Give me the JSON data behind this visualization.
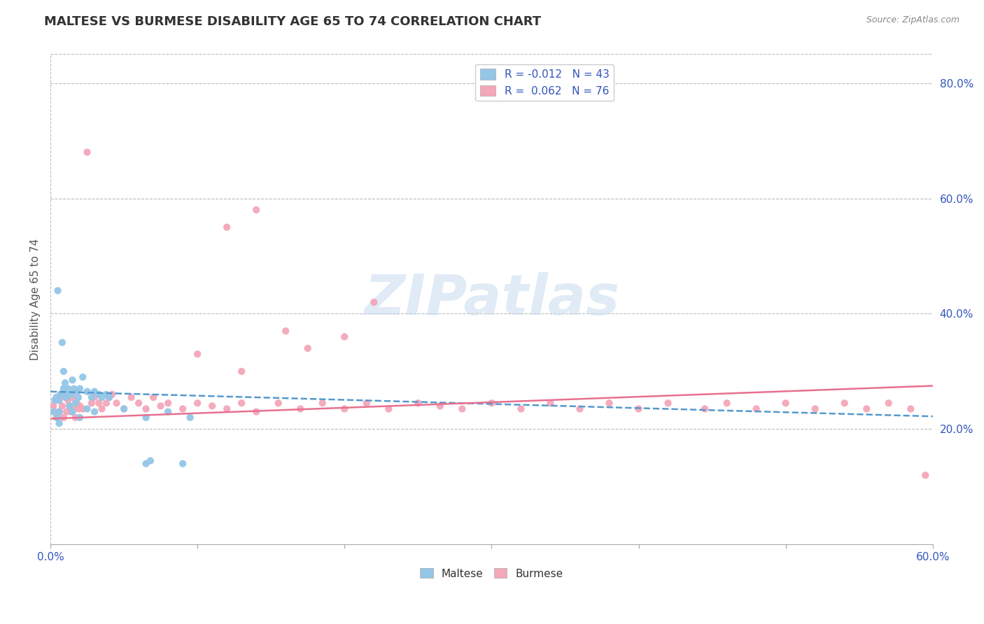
{
  "title": "MALTESE VS BURMESE DISABILITY AGE 65 TO 74 CORRELATION CHART",
  "source_text": "Source: ZipAtlas.com",
  "ylabel": "Disability Age 65 to 74",
  "xlim": [
    0.0,
    0.6
  ],
  "ylim": [
    0.0,
    0.85
  ],
  "xticks": [
    0.0,
    0.1,
    0.2,
    0.3,
    0.4,
    0.5,
    0.6
  ],
  "yticks_right": [
    0.2,
    0.4,
    0.6,
    0.8
  ],
  "ytick_right_labels": [
    "20.0%",
    "40.0%",
    "60.0%",
    "80.0%"
  ],
  "maltese_R": -0.012,
  "maltese_N": 43,
  "burmese_R": 0.062,
  "burmese_N": 76,
  "maltese_color": "#94C6E7",
  "burmese_color": "#F4A7B9",
  "maltese_line_color": "#5599CC",
  "burmese_line_color": "#E87090",
  "legend_text_color": "#3355BB",
  "background_color": "#FFFFFF",
  "grid_color": "#BBBBBB",
  "watermark": "ZIPatlas",
  "maltese_x": [
    0.002,
    0.003,
    0.004,
    0.005,
    0.006,
    0.006,
    0.007,
    0.008,
    0.009,
    0.009,
    0.01,
    0.01,
    0.011,
    0.012,
    0.013,
    0.014,
    0.015,
    0.016,
    0.017,
    0.018,
    0.019,
    0.02,
    0.022,
    0.025,
    0.028,
    0.03,
    0.033,
    0.035,
    0.038,
    0.04,
    0.005,
    0.006,
    0.015,
    0.02,
    0.025,
    0.03,
    0.05,
    0.065,
    0.08,
    0.095,
    0.065,
    0.068,
    0.09
  ],
  "maltese_y": [
    0.23,
    0.25,
    0.255,
    0.44,
    0.25,
    0.23,
    0.26,
    0.35,
    0.27,
    0.3,
    0.26,
    0.28,
    0.255,
    0.27,
    0.24,
    0.26,
    0.285,
    0.27,
    0.245,
    0.265,
    0.255,
    0.27,
    0.29,
    0.265,
    0.255,
    0.265,
    0.26,
    0.255,
    0.26,
    0.255,
    0.22,
    0.21,
    0.23,
    0.22,
    0.235,
    0.23,
    0.235,
    0.22,
    0.23,
    0.22,
    0.14,
    0.145,
    0.14
  ],
  "burmese_x": [
    0.002,
    0.003,
    0.004,
    0.005,
    0.006,
    0.007,
    0.008,
    0.009,
    0.01,
    0.011,
    0.012,
    0.013,
    0.014,
    0.015,
    0.016,
    0.017,
    0.018,
    0.019,
    0.02,
    0.022,
    0.025,
    0.028,
    0.03,
    0.033,
    0.035,
    0.038,
    0.04,
    0.042,
    0.045,
    0.05,
    0.055,
    0.06,
    0.065,
    0.07,
    0.075,
    0.08,
    0.09,
    0.1,
    0.11,
    0.12,
    0.13,
    0.14,
    0.155,
    0.17,
    0.185,
    0.2,
    0.215,
    0.23,
    0.25,
    0.265,
    0.28,
    0.3,
    0.32,
    0.34,
    0.36,
    0.38,
    0.4,
    0.42,
    0.445,
    0.46,
    0.48,
    0.5,
    0.52,
    0.54,
    0.555,
    0.57,
    0.585,
    0.595,
    0.12,
    0.14,
    0.2,
    0.22,
    0.1,
    0.13,
    0.16,
    0.175
  ],
  "burmese_y": [
    0.24,
    0.23,
    0.22,
    0.25,
    0.23,
    0.26,
    0.24,
    0.22,
    0.255,
    0.23,
    0.25,
    0.24,
    0.23,
    0.255,
    0.24,
    0.22,
    0.245,
    0.235,
    0.24,
    0.235,
    0.68,
    0.245,
    0.255,
    0.245,
    0.235,
    0.245,
    0.255,
    0.26,
    0.245,
    0.235,
    0.255,
    0.245,
    0.235,
    0.255,
    0.24,
    0.245,
    0.235,
    0.245,
    0.24,
    0.235,
    0.245,
    0.23,
    0.245,
    0.235,
    0.245,
    0.235,
    0.245,
    0.235,
    0.245,
    0.24,
    0.235,
    0.245,
    0.235,
    0.245,
    0.235,
    0.245,
    0.235,
    0.245,
    0.235,
    0.245,
    0.235,
    0.245,
    0.235,
    0.245,
    0.235,
    0.245,
    0.235,
    0.12,
    0.55,
    0.58,
    0.36,
    0.42,
    0.33,
    0.3,
    0.37,
    0.34
  ],
  "maltese_trend_x": [
    0.0,
    0.6
  ],
  "maltese_trend_y": [
    0.265,
    0.222
  ],
  "burmese_trend_x": [
    0.0,
    0.6
  ],
  "burmese_trend_y": [
    0.218,
    0.275
  ]
}
